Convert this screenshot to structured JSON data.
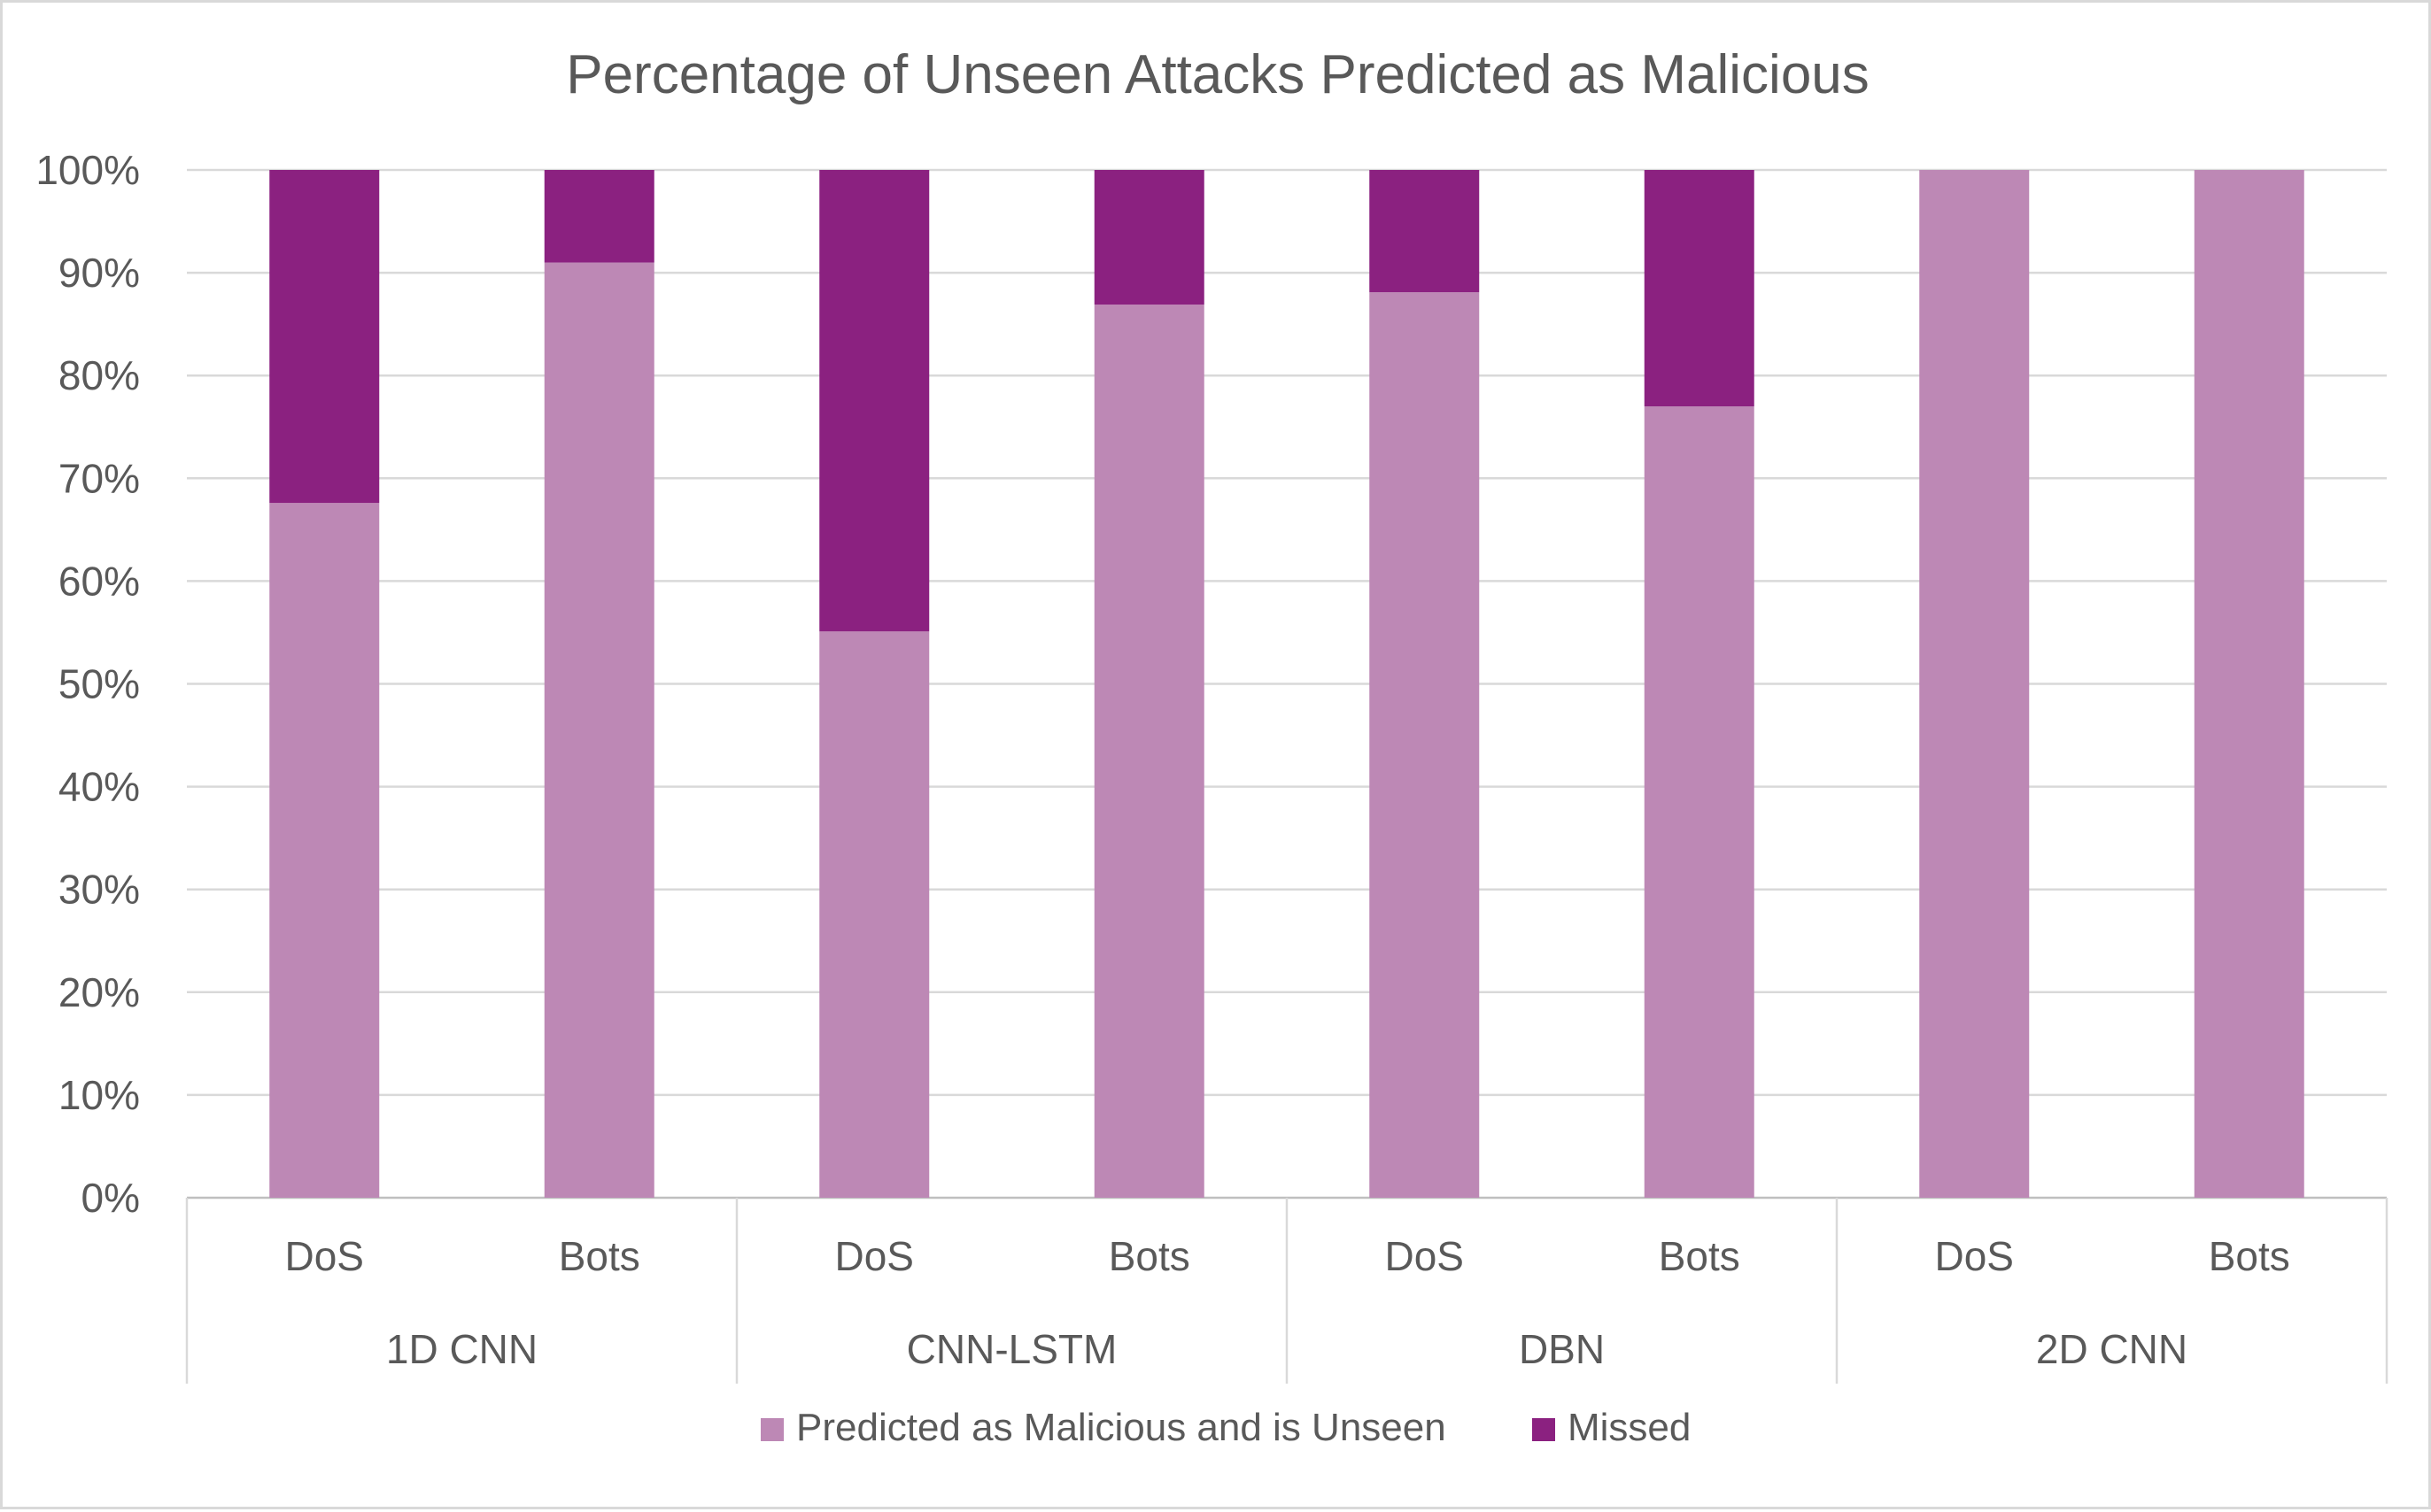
{
  "chart_data": {
    "type": "bar",
    "stacked": true,
    "title": "Percentage of Unseen Attacks Predicted as Malicious",
    "xlabel": "",
    "ylabel": "",
    "ylim": [
      0,
      100
    ],
    "y_ticks": [
      "0%",
      "10%",
      "20%",
      "30%",
      "40%",
      "50%",
      "60%",
      "70%",
      "80%",
      "90%",
      "100%"
    ],
    "groups": [
      "1D CNN",
      "CNN-LSTM",
      "DBN",
      "2D CNN"
    ],
    "categories": [
      "DoS",
      "Bots",
      "DoS",
      "Bots",
      "DoS",
      "Bots",
      "DoS",
      "Bots"
    ],
    "series": [
      {
        "name": "Predicted as Malicious and is Unseen",
        "color": "#bd88b5",
        "values": [
          67.6,
          91.0,
          55.1,
          86.9,
          88.1,
          77.0,
          100.0,
          100.0
        ]
      },
      {
        "name": "Missed",
        "color": "#8b2180",
        "values": [
          32.4,
          9.0,
          44.9,
          13.1,
          11.9,
          23.0,
          0.0,
          0.0
        ]
      }
    ],
    "grid": true,
    "legend_position": "bottom"
  }
}
